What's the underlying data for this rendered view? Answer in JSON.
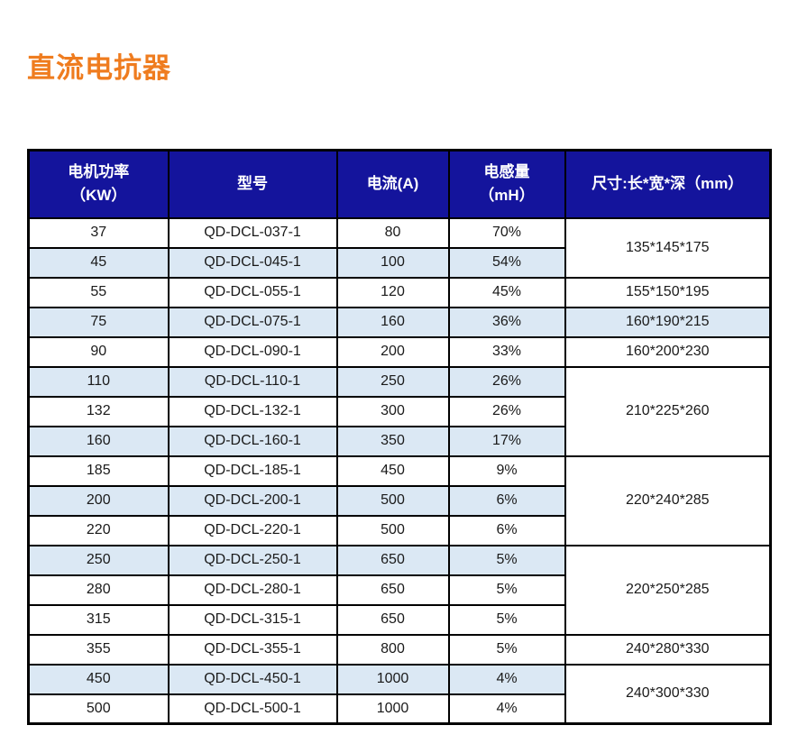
{
  "page": {
    "title": "直流电抗器"
  },
  "theme": {
    "title_color": "#EF7C1F",
    "header_bg": "#14149C",
    "header_text": "#FFFFFF",
    "stripe_bg": "#DBE8F4",
    "border_color": "#000000"
  },
  "table": {
    "columns": [
      {
        "id": "power",
        "lines": [
          "电机功率",
          "（KW）"
        ]
      },
      {
        "id": "model",
        "lines": [
          "型号"
        ]
      },
      {
        "id": "current",
        "lines": [
          "电流(A)"
        ]
      },
      {
        "id": "inductance",
        "lines": [
          "电感量",
          "（mH）"
        ]
      },
      {
        "id": "size",
        "lines": [
          "尺寸:长*宽*深（mm）"
        ]
      }
    ],
    "rows": [
      {
        "power": "37",
        "model": "QD-DCL-037-1",
        "current": "80",
        "inductance": "70%",
        "striped": false,
        "size": "135*145*175",
        "size_rowspan": 2,
        "size_striped": false
      },
      {
        "power": "45",
        "model": "QD-DCL-045-1",
        "current": "100",
        "inductance": "54%",
        "striped": true
      },
      {
        "power": "55",
        "model": "QD-DCL-055-1",
        "current": "120",
        "inductance": "45%",
        "striped": false,
        "size": "155*150*195",
        "size_rowspan": 1,
        "size_striped": false
      },
      {
        "power": "75",
        "model": "QD-DCL-075-1",
        "current": "160",
        "inductance": "36%",
        "striped": true,
        "size": "160*190*215",
        "size_rowspan": 1,
        "size_striped": true
      },
      {
        "power": "90",
        "model": "QD-DCL-090-1",
        "current": "200",
        "inductance": "33%",
        "striped": false,
        "size": "160*200*230",
        "size_rowspan": 1,
        "size_striped": false
      },
      {
        "power": "110",
        "model": "QD-DCL-110-1",
        "current": "250",
        "inductance": "26%",
        "striped": true,
        "size": "210*225*260",
        "size_rowspan": 3,
        "size_striped": false
      },
      {
        "power": "132",
        "model": "QD-DCL-132-1",
        "current": "300",
        "inductance": "26%",
        "striped": false
      },
      {
        "power": "160",
        "model": "QD-DCL-160-1",
        "current": "350",
        "inductance": "17%",
        "striped": true
      },
      {
        "power": "185",
        "model": "QD-DCL-185-1",
        "current": "450",
        "inductance": "9%",
        "striped": false,
        "size": "220*240*285",
        "size_rowspan": 3,
        "size_striped": false
      },
      {
        "power": "200",
        "model": "QD-DCL-200-1",
        "current": "500",
        "inductance": "6%",
        "striped": true
      },
      {
        "power": "220",
        "model": "QD-DCL-220-1",
        "current": "500",
        "inductance": "6%",
        "striped": false
      },
      {
        "power": "250",
        "model": "QD-DCL-250-1",
        "current": "650",
        "inductance": "5%",
        "striped": true,
        "size": "220*250*285",
        "size_rowspan": 3,
        "size_striped": false
      },
      {
        "power": "280",
        "model": "QD-DCL-280-1",
        "current": "650",
        "inductance": "5%",
        "striped": false
      },
      {
        "power": "315",
        "model": "QD-DCL-315-1",
        "current": "650",
        "inductance": "5%",
        "striped": false
      },
      {
        "power": "355",
        "model": "QD-DCL-355-1",
        "current": "800",
        "inductance": "5%",
        "striped": false,
        "size": "240*280*330",
        "size_rowspan": 1,
        "size_striped": false
      },
      {
        "power": "450",
        "model": "QD-DCL-450-1",
        "current": "1000",
        "inductance": "4%",
        "striped": true,
        "size": "240*300*330",
        "size_rowspan": 2,
        "size_striped": false
      },
      {
        "power": "500",
        "model": "QD-DCL-500-1",
        "current": "1000",
        "inductance": "4%",
        "striped": false
      }
    ]
  }
}
